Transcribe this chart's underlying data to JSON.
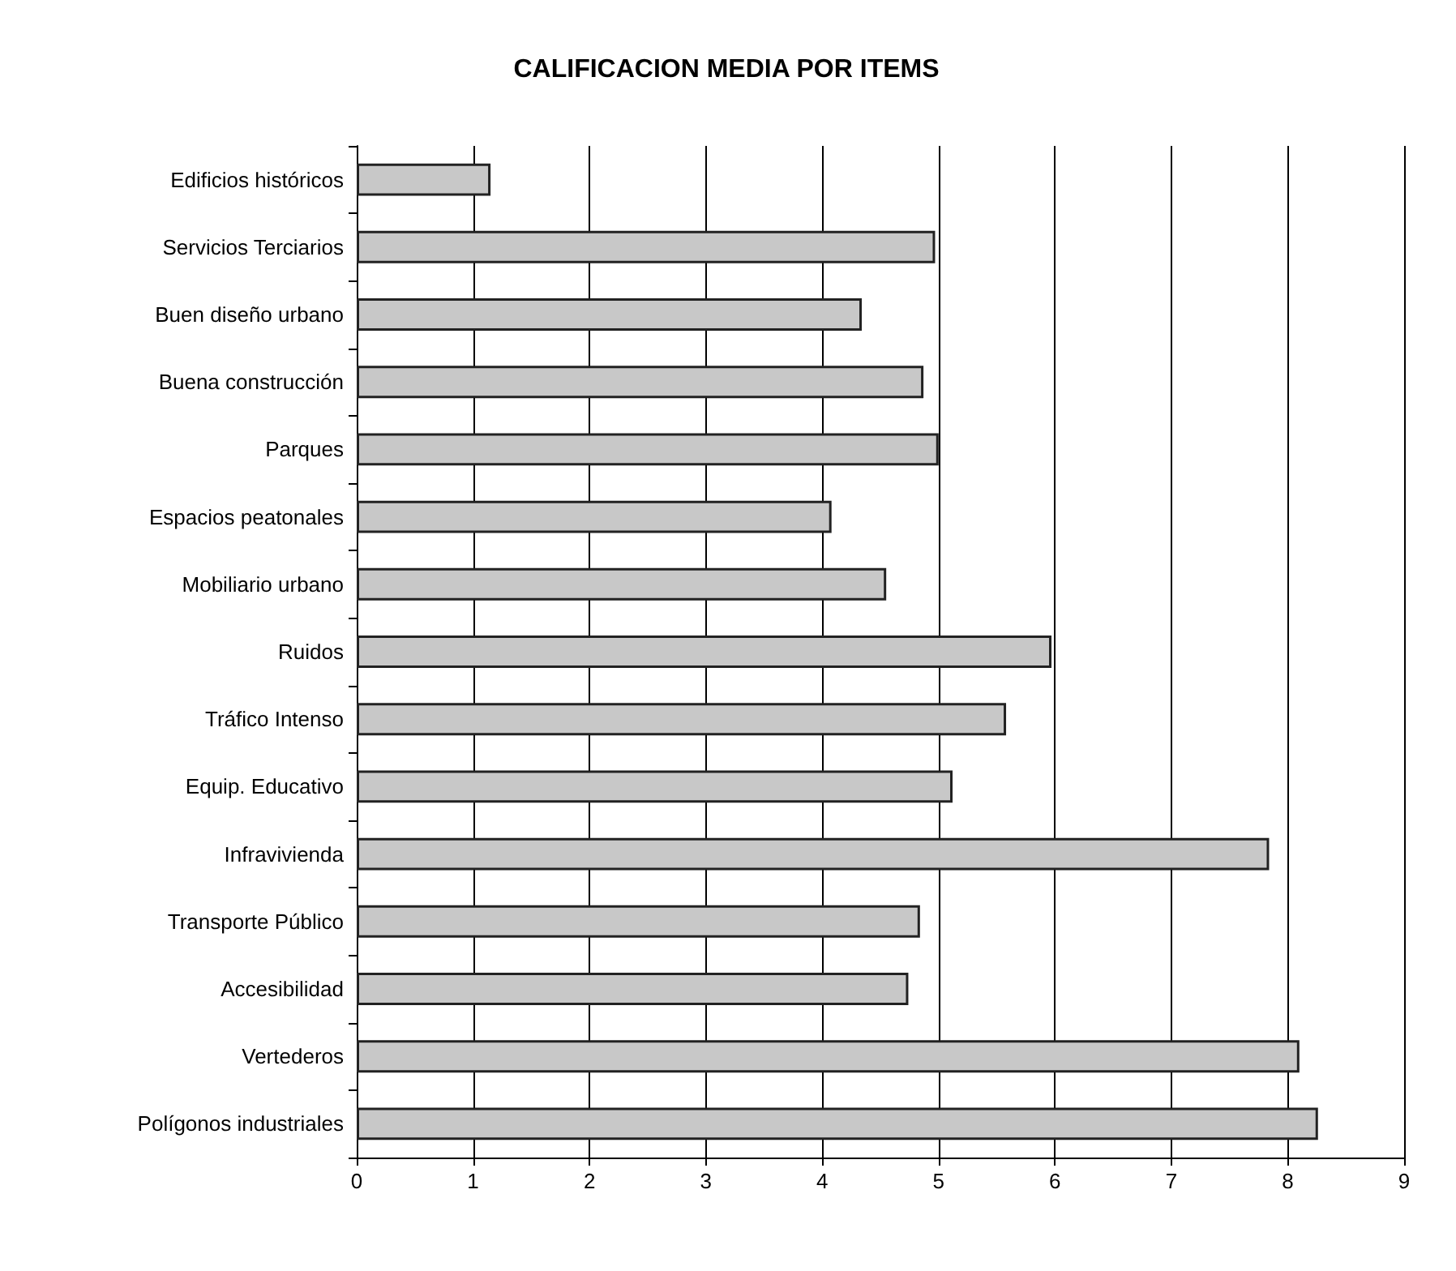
{
  "chart_data": {
    "type": "bar",
    "orientation": "horizontal",
    "title": "CALIFICACION MEDIA POR ITEMS",
    "categories": [
      "Edificios históricos",
      "Servicios Terciarios",
      "Buen diseño urbano",
      "Buena construcción",
      "Parques",
      "Espacios peatonales",
      "Mobiliario urbano",
      "Ruidos",
      "Tráfico Intenso",
      "Equip. Educativo",
      "Infravivienda",
      "Transporte Público",
      "Accesibilidad",
      "Vertederos",
      "Polígonos industriales"
    ],
    "values": [
      1.15,
      4.97,
      4.34,
      4.87,
      5.0,
      4.08,
      4.55,
      5.97,
      5.58,
      5.12,
      7.84,
      4.84,
      4.74,
      8.1,
      8.26
    ],
    "color": "#c8c8c8",
    "xlim": [
      0,
      9
    ],
    "xticks": [
      0,
      1,
      2,
      3,
      4,
      5,
      6,
      7,
      8,
      9
    ],
    "grid": "x"
  }
}
